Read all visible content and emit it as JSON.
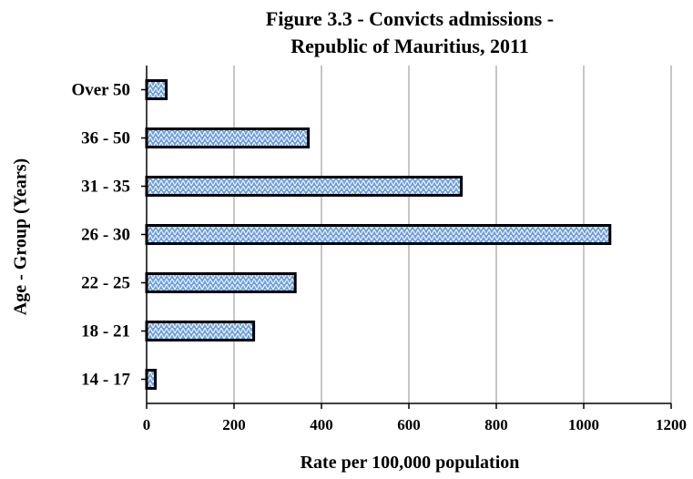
{
  "chart_data": {
    "type": "bar",
    "orientation": "horizontal",
    "title": [
      "Figure 3.3 - Convicts admissions -",
      "Republic of Mauritius, 2011"
    ],
    "xlabel": "Rate per 100,000 population",
    "ylabel": "Age - Group (Years)",
    "categories": [
      "14 - 17",
      "18 - 21",
      "22 - 25",
      "26 - 30",
      "31 - 35",
      "36 - 50",
      "Over 50"
    ],
    "values": [
      20,
      245,
      340,
      1060,
      720,
      370,
      45
    ],
    "xlim": [
      0,
      1200
    ],
    "xticks": [
      "0",
      "200",
      "400",
      "600",
      "800",
      "1000",
      "1200"
    ],
    "grid": "vertical",
    "legend": "none",
    "bar_color": "#6fa0dc",
    "bar_border": "#000000"
  }
}
